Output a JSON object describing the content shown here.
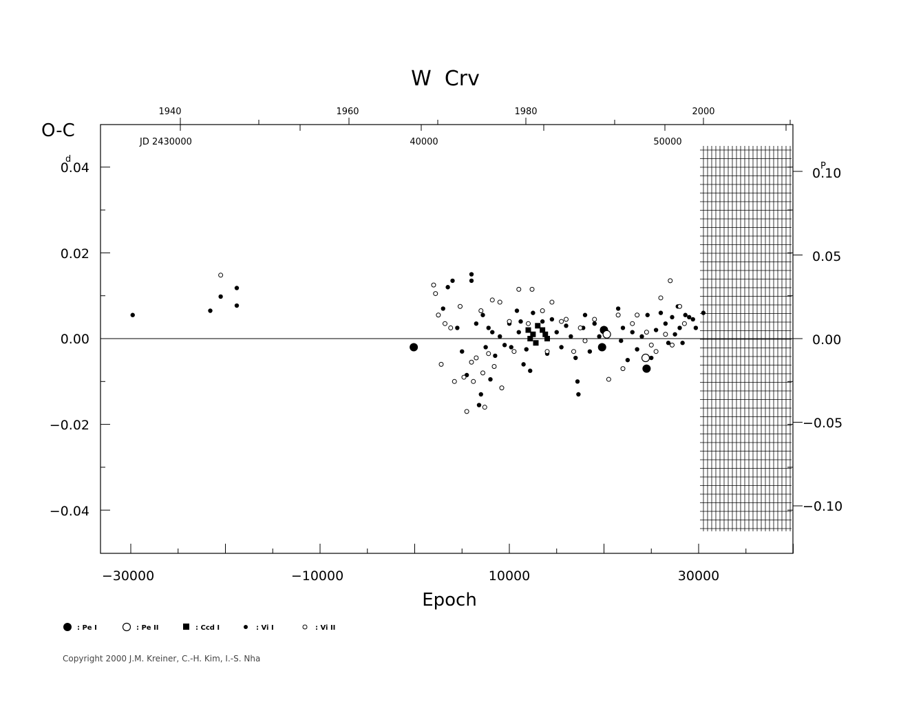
{
  "chart_data": {
    "type": "scatter",
    "title": "W  Crv",
    "ylabel": "O-C",
    "ylabel_unit": "d",
    "xlabel": "Epoch",
    "xlim": [
      -32000,
      41000
    ],
    "ylim": [
      -0.05,
      0.05
    ],
    "x_ticks": [
      "−30000",
      "−10000",
      "10000",
      "30000"
    ],
    "y_ticks_left": [
      "0.04",
      "0.02",
      "0.00",
      "−0.02",
      "−0.04"
    ],
    "y_ticks_right": [
      "0.10",
      "0.05",
      "0.00",
      "−0.05",
      "−0.10"
    ],
    "right_axis_unit": "P",
    "year_ticks": [
      "1940",
      "1960",
      "1980",
      "2000"
    ],
    "jd_labels": [
      "JD 2430000",
      "40000",
      "50000"
    ],
    "legend": [
      {
        "symbol": "large-filled-circle",
        "label": ": Pe I"
      },
      {
        "symbol": "large-open-circle",
        "label": ": Pe II"
      },
      {
        "symbol": "filled-square",
        "label": ": Ccd I"
      },
      {
        "symbol": "small-filled-circle",
        "label": ": Vi I"
      },
      {
        "symbol": "small-open-circle",
        "label": ": Vi II"
      }
    ],
    "series": [
      {
        "name": ": Pe I",
        "points": [
          [
            -100,
            -0.002
          ],
          [
            20000,
            0.002
          ],
          [
            19800,
            -0.002
          ],
          [
            24500,
            -0.007
          ]
        ]
      },
      {
        "name": ": Pe II",
        "points": [
          [
            24400,
            -0.0045
          ],
          [
            20300,
            0.001
          ]
        ]
      },
      {
        "name": ": Ccd I",
        "points": [
          [
            12000,
            0.002
          ],
          [
            12500,
            0.001
          ],
          [
            13000,
            0.003
          ],
          [
            13500,
            0.002
          ],
          [
            12200,
            0.0
          ],
          [
            13800,
            0.001
          ],
          [
            14000,
            0.0
          ],
          [
            12800,
            -0.001
          ]
        ]
      },
      {
        "name": ": Vi I",
        "points": [
          [
            -29800,
            0.0055
          ],
          [
            -21600,
            0.0065
          ],
          [
            -20500,
            0.0098
          ],
          [
            -18800,
            0.0118
          ],
          [
            -18800,
            0.0077
          ],
          [
            3000,
            0.007
          ],
          [
            3500,
            0.012
          ],
          [
            4000,
            0.0135
          ],
          [
            4500,
            0.0025
          ],
          [
            5000,
            -0.003
          ],
          [
            5500,
            -0.0085
          ],
          [
            6000,
            0.015
          ],
          [
            6000,
            0.0135
          ],
          [
            6500,
            0.0035
          ],
          [
            6800,
            -0.0155
          ],
          [
            7000,
            -0.013
          ],
          [
            7200,
            0.0055
          ],
          [
            7500,
            -0.002
          ],
          [
            7800,
            0.0025
          ],
          [
            8000,
            -0.0095
          ],
          [
            8200,
            0.0015
          ],
          [
            8500,
            -0.004
          ],
          [
            9000,
            0.0005
          ],
          [
            9500,
            -0.0015
          ],
          [
            10000,
            0.0035
          ],
          [
            10200,
            -0.002
          ],
          [
            10800,
            0.0065
          ],
          [
            11000,
            0.0015
          ],
          [
            11200,
            0.004
          ],
          [
            11500,
            -0.006
          ],
          [
            11800,
            -0.0025
          ],
          [
            12200,
            -0.0075
          ],
          [
            12500,
            0.006
          ],
          [
            13500,
            0.004
          ],
          [
            14000,
            -0.0035
          ],
          [
            14500,
            0.0045
          ],
          [
            15000,
            0.0015
          ],
          [
            15500,
            -0.002
          ],
          [
            16000,
            0.003
          ],
          [
            16500,
            0.0005
          ],
          [
            17000,
            -0.0045
          ],
          [
            17200,
            -0.01
          ],
          [
            17300,
            -0.013
          ],
          [
            17800,
            0.0025
          ],
          [
            18000,
            0.0055
          ],
          [
            18500,
            -0.003
          ],
          [
            19000,
            0.0035
          ],
          [
            19500,
            0.0005
          ],
          [
            21500,
            0.007
          ],
          [
            21800,
            -0.0005
          ],
          [
            22000,
            0.0025
          ],
          [
            22500,
            -0.005
          ],
          [
            23000,
            0.0015
          ],
          [
            23500,
            -0.0025
          ],
          [
            24000,
            0.0005
          ],
          [
            24600,
            0.0055
          ],
          [
            25000,
            -0.0045
          ],
          [
            25500,
            0.002
          ],
          [
            26000,
            0.006
          ],
          [
            26500,
            0.0035
          ],
          [
            26800,
            -0.001
          ],
          [
            27200,
            0.005
          ],
          [
            27500,
            0.001
          ],
          [
            27800,
            0.0075
          ],
          [
            28000,
            0.0025
          ],
          [
            28300,
            -0.001
          ],
          [
            28600,
            0.0055
          ],
          [
            29000,
            0.005
          ],
          [
            29400,
            0.0045
          ],
          [
            29700,
            0.0025
          ],
          [
            30500,
            0.006
          ]
        ]
      },
      {
        "name": ": Vi II",
        "points": [
          [
            -20500,
            0.0148
          ],
          [
            2000,
            0.0125
          ],
          [
            2200,
            0.0105
          ],
          [
            2500,
            0.0055
          ],
          [
            2800,
            -0.006
          ],
          [
            3200,
            0.0035
          ],
          [
            3800,
            0.0025
          ],
          [
            4200,
            -0.01
          ],
          [
            4800,
            0.0075
          ],
          [
            5200,
            -0.009
          ],
          [
            5500,
            -0.017
          ],
          [
            6000,
            -0.0055
          ],
          [
            6200,
            -0.01
          ],
          [
            6500,
            -0.0045
          ],
          [
            7000,
            0.0065
          ],
          [
            7200,
            -0.008
          ],
          [
            7400,
            -0.016
          ],
          [
            7800,
            -0.0035
          ],
          [
            8200,
            0.009
          ],
          [
            8400,
            -0.0065
          ],
          [
            9000,
            0.0085
          ],
          [
            9200,
            -0.0115
          ],
          [
            10000,
            0.004
          ],
          [
            10500,
            -0.003
          ],
          [
            11000,
            0.0115
          ],
          [
            12000,
            0.0035
          ],
          [
            12400,
            0.0115
          ],
          [
            13500,
            0.0065
          ],
          [
            14000,
            -0.003
          ],
          [
            14500,
            0.0085
          ],
          [
            15500,
            0.004
          ],
          [
            16000,
            0.0045
          ],
          [
            16800,
            -0.003
          ],
          [
            17500,
            0.0025
          ],
          [
            18000,
            -0.0005
          ],
          [
            19000,
            0.0045
          ],
          [
            20500,
            -0.0095
          ],
          [
            21500,
            0.0055
          ],
          [
            22000,
            -0.007
          ],
          [
            23000,
            0.0035
          ],
          [
            23500,
            0.0055
          ],
          [
            24500,
            0.0015
          ],
          [
            25000,
            -0.0015
          ],
          [
            25500,
            -0.003
          ],
          [
            26000,
            0.0095
          ],
          [
            26500,
            0.001
          ],
          [
            27000,
            0.0135
          ],
          [
            27200,
            -0.0015
          ],
          [
            28000,
            0.0075
          ],
          [
            28500,
            0.0035
          ]
        ]
      }
    ]
  },
  "copyright": "Copyright 2000 J.M. Kreiner, C.-H. Kim, I.-S. Nha"
}
